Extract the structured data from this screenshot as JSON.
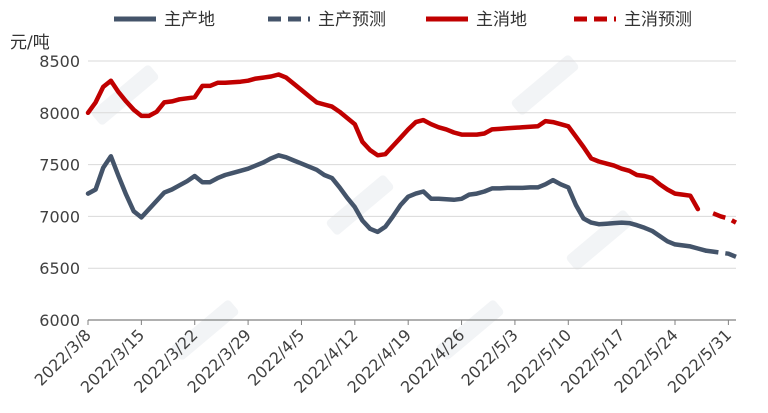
{
  "chart_data": {
    "type": "line",
    "unit_label": "元/吨",
    "ylim": [
      6000,
      8500
    ],
    "yticks": [
      6000,
      6500,
      7000,
      7500,
      8000,
      8500
    ],
    "xticks": [
      "2022/3/8",
      "2022/3/15",
      "2022/3/22",
      "2022/3/29",
      "2022/4/5",
      "2022/4/12",
      "2022/4/19",
      "2022/4/26",
      "2022/5/3",
      "2022/5/10",
      "2022/5/17",
      "2022/5/24",
      "2022/5/31"
    ],
    "xlim": [
      "2022/3/8",
      "2022/6/1"
    ],
    "grid": "horizontal",
    "legend_position": "top",
    "series": [
      {
        "name": "主产地",
        "color": "#44546a",
        "dash": false,
        "points": [
          [
            "2022/3/8",
            7220
          ],
          [
            "2022/3/9",
            7260
          ],
          [
            "2022/3/10",
            7470
          ],
          [
            "2022/3/11",
            7580
          ],
          [
            "2022/3/12",
            7390
          ],
          [
            "2022/3/13",
            7210
          ],
          [
            "2022/3/14",
            7050
          ],
          [
            "2022/3/15",
            6990
          ],
          [
            "2022/3/16",
            7070
          ],
          [
            "2022/3/17",
            7150
          ],
          [
            "2022/3/18",
            7230
          ],
          [
            "2022/3/19",
            7260
          ],
          [
            "2022/3/20",
            7300
          ],
          [
            "2022/3/21",
            7340
          ],
          [
            "2022/3/22",
            7390
          ],
          [
            "2022/3/23",
            7330
          ],
          [
            "2022/3/24",
            7330
          ],
          [
            "2022/3/25",
            7370
          ],
          [
            "2022/3/26",
            7400
          ],
          [
            "2022/3/27",
            7420
          ],
          [
            "2022/3/28",
            7440
          ],
          [
            "2022/3/29",
            7460
          ],
          [
            "2022/3/30",
            7490
          ],
          [
            "2022/3/31",
            7520
          ],
          [
            "2022/4/1",
            7560
          ],
          [
            "2022/4/2",
            7590
          ],
          [
            "2022/4/3",
            7570
          ],
          [
            "2022/4/4",
            7540
          ],
          [
            "2022/4/5",
            7510
          ],
          [
            "2022/4/6",
            7480
          ],
          [
            "2022/4/7",
            7450
          ],
          [
            "2022/4/8",
            7400
          ],
          [
            "2022/4/9",
            7370
          ],
          [
            "2022/4/10",
            7280
          ],
          [
            "2022/4/11",
            7180
          ],
          [
            "2022/4/12",
            7090
          ],
          [
            "2022/4/13",
            6960
          ],
          [
            "2022/4/14",
            6880
          ],
          [
            "2022/4/15",
            6850
          ],
          [
            "2022/4/16",
            6900
          ],
          [
            "2022/4/17",
            7000
          ],
          [
            "2022/4/18",
            7110
          ],
          [
            "2022/4/19",
            7190
          ],
          [
            "2022/4/20",
            7220
          ],
          [
            "2022/4/21",
            7240
          ],
          [
            "2022/4/22",
            7170
          ],
          [
            "2022/4/23",
            7170
          ],
          [
            "2022/4/24",
            7165
          ],
          [
            "2022/4/25",
            7160
          ],
          [
            "2022/4/26",
            7170
          ],
          [
            "2022/4/27",
            7210
          ],
          [
            "2022/4/28",
            7220
          ],
          [
            "2022/4/29",
            7240
          ],
          [
            "2022/4/30",
            7270
          ],
          [
            "2022/5/1",
            7270
          ],
          [
            "2022/5/2",
            7275
          ],
          [
            "2022/5/3",
            7275
          ],
          [
            "2022/5/4",
            7275
          ],
          [
            "2022/5/5",
            7280
          ],
          [
            "2022/5/6",
            7280
          ],
          [
            "2022/5/7",
            7310
          ],
          [
            "2022/5/8",
            7350
          ],
          [
            "2022/5/9",
            7310
          ],
          [
            "2022/5/10",
            7280
          ],
          [
            "2022/5/11",
            7110
          ],
          [
            "2022/5/12",
            6980
          ],
          [
            "2022/5/13",
            6940
          ],
          [
            "2022/5/14",
            6925
          ],
          [
            "2022/5/15",
            6930
          ],
          [
            "2022/5/16",
            6935
          ],
          [
            "2022/5/17",
            6940
          ],
          [
            "2022/5/18",
            6935
          ],
          [
            "2022/5/19",
            6915
          ],
          [
            "2022/5/20",
            6890
          ],
          [
            "2022/5/21",
            6860
          ],
          [
            "2022/5/22",
            6810
          ],
          [
            "2022/5/23",
            6760
          ],
          [
            "2022/5/24",
            6730
          ],
          [
            "2022/5/25",
            6720
          ],
          [
            "2022/5/26",
            6710
          ],
          [
            "2022/5/27",
            6690
          ],
          [
            "2022/5/28",
            6670
          ]
        ]
      },
      {
        "name": "主产预测",
        "color": "#44546a",
        "dash": true,
        "points": [
          [
            "2022/5/28",
            6670
          ],
          [
            "2022/5/29",
            6660
          ],
          [
            "2022/5/30",
            6650
          ],
          [
            "2022/5/31",
            6640
          ],
          [
            "2022/6/1",
            6610
          ]
        ]
      },
      {
        "name": "主消地",
        "color": "#c00000",
        "dash": false,
        "points": [
          [
            "2022/3/8",
            8000
          ],
          [
            "2022/3/9",
            8100
          ],
          [
            "2022/3/10",
            8250
          ],
          [
            "2022/3/11",
            8310
          ],
          [
            "2022/3/12",
            8200
          ],
          [
            "2022/3/13",
            8110
          ],
          [
            "2022/3/14",
            8030
          ],
          [
            "2022/3/15",
            7970
          ],
          [
            "2022/3/16",
            7970
          ],
          [
            "2022/3/17",
            8010
          ],
          [
            "2022/3/18",
            8100
          ],
          [
            "2022/3/19",
            8110
          ],
          [
            "2022/3/20",
            8130
          ],
          [
            "2022/3/21",
            8140
          ],
          [
            "2022/3/22",
            8150
          ],
          [
            "2022/3/23",
            8260
          ],
          [
            "2022/3/24",
            8260
          ],
          [
            "2022/3/25",
            8290
          ],
          [
            "2022/3/26",
            8290
          ],
          [
            "2022/3/27",
            8295
          ],
          [
            "2022/3/28",
            8300
          ],
          [
            "2022/3/29",
            8310
          ],
          [
            "2022/3/30",
            8330
          ],
          [
            "2022/3/31",
            8340
          ],
          [
            "2022/4/1",
            8350
          ],
          [
            "2022/4/2",
            8370
          ],
          [
            "2022/4/3",
            8340
          ],
          [
            "2022/4/4",
            8280
          ],
          [
            "2022/4/5",
            8220
          ],
          [
            "2022/4/6",
            8160
          ],
          [
            "2022/4/7",
            8100
          ],
          [
            "2022/4/8",
            8080
          ],
          [
            "2022/4/9",
            8060
          ],
          [
            "2022/4/10",
            8010
          ],
          [
            "2022/4/11",
            7950
          ],
          [
            "2022/4/12",
            7890
          ],
          [
            "2022/4/13",
            7720
          ],
          [
            "2022/4/14",
            7640
          ],
          [
            "2022/4/15",
            7590
          ],
          [
            "2022/4/16",
            7600
          ],
          [
            "2022/4/17",
            7680
          ],
          [
            "2022/4/18",
            7760
          ],
          [
            "2022/4/19",
            7840
          ],
          [
            "2022/4/20",
            7910
          ],
          [
            "2022/4/21",
            7930
          ],
          [
            "2022/4/22",
            7890
          ],
          [
            "2022/4/23",
            7860
          ],
          [
            "2022/4/24",
            7840
          ],
          [
            "2022/4/25",
            7810
          ],
          [
            "2022/4/26",
            7790
          ],
          [
            "2022/4/27",
            7790
          ],
          [
            "2022/4/28",
            7790
          ],
          [
            "2022/4/29",
            7800
          ],
          [
            "2022/4/30",
            7840
          ],
          [
            "2022/5/1",
            7845
          ],
          [
            "2022/5/2",
            7850
          ],
          [
            "2022/5/3",
            7855
          ],
          [
            "2022/5/4",
            7860
          ],
          [
            "2022/5/5",
            7865
          ],
          [
            "2022/5/6",
            7870
          ],
          [
            "2022/5/7",
            7920
          ],
          [
            "2022/5/8",
            7910
          ],
          [
            "2022/5/9",
            7890
          ],
          [
            "2022/5/10",
            7870
          ],
          [
            "2022/5/11",
            7770
          ],
          [
            "2022/5/12",
            7670
          ],
          [
            "2022/5/13",
            7560
          ],
          [
            "2022/5/14",
            7530
          ],
          [
            "2022/5/15",
            7510
          ],
          [
            "2022/5/16",
            7490
          ],
          [
            "2022/5/17",
            7460
          ],
          [
            "2022/5/18",
            7440
          ],
          [
            "2022/5/19",
            7400
          ],
          [
            "2022/5/20",
            7390
          ],
          [
            "2022/5/21",
            7370
          ],
          [
            "2022/5/22",
            7310
          ],
          [
            "2022/5/23",
            7260
          ],
          [
            "2022/5/24",
            7220
          ],
          [
            "2022/5/25",
            7210
          ],
          [
            "2022/5/26",
            7200
          ],
          [
            "2022/5/27",
            7070
          ]
        ]
      },
      {
        "name": "主消预测",
        "color": "#c00000",
        "dash": true,
        "points": [
          [
            "2022/5/29",
            7030
          ],
          [
            "2022/5/30",
            7000
          ],
          [
            "2022/5/31",
            6980
          ],
          [
            "2022/6/1",
            6940
          ]
        ]
      }
    ]
  }
}
